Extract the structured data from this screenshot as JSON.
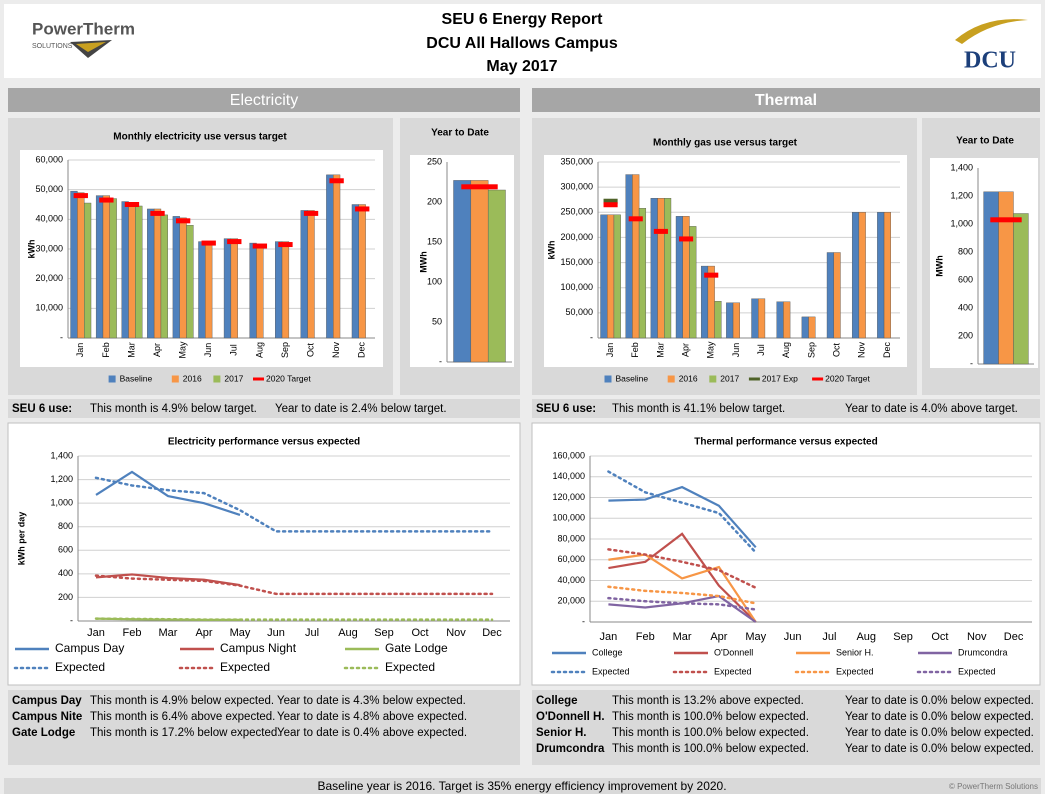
{
  "header": {
    "title": "SEU 6 Energy Report",
    "subtitle": "DCU All Hallows Campus",
    "period": "May 2017",
    "logo_left": "PowerTherm",
    "logo_left_sub": "SOLUTIONS",
    "logo_right": "DCU"
  },
  "sections": [
    "Electricity",
    "Thermal"
  ],
  "chart_data": [
    {
      "type": "bar",
      "title": "Monthly electricity use versus target",
      "y_label": "kWh",
      "categories": [
        "Jan",
        "Feb",
        "Mar",
        "Apr",
        "May",
        "Jun",
        "Jul",
        "Aug",
        "Sep",
        "Oct",
        "Nov",
        "Dec"
      ],
      "series": [
        {
          "name": "Baseline",
          "color": "#4f81bd",
          "kind": "bar",
          "values": [
            49500,
            48000,
            46000,
            43500,
            41000,
            32500,
            33500,
            32000,
            32500,
            43000,
            55000,
            45000
          ]
        },
        {
          "name": "2016",
          "color": "#f79646",
          "kind": "bar",
          "values": [
            49000,
            48000,
            45500,
            43500,
            40500,
            32500,
            33500,
            31500,
            32500,
            43000,
            55000,
            45000
          ]
        },
        {
          "name": "2017",
          "color": "#9bbb59",
          "kind": "bar",
          "values": [
            45500,
            47000,
            44500,
            41500,
            38000,
            null,
            null,
            null,
            null,
            null,
            null,
            null
          ]
        },
        {
          "name": "2020 Target",
          "color": "#ff0000",
          "kind": "dash",
          "values": [
            48000,
            46500,
            45000,
            42000,
            39500,
            32000,
            32500,
            31000,
            31500,
            42000,
            53000,
            43500
          ]
        }
      ],
      "ylim": [
        0,
        60000
      ],
      "yticks": [
        {
          "value": 0,
          "label": "-"
        },
        {
          "value": 10000,
          "label": "10,000"
        },
        {
          "value": 20000,
          "label": "20,000"
        },
        {
          "value": 30000,
          "label": "30,000"
        },
        {
          "value": 40000,
          "label": "40,000"
        },
        {
          "value": 50000,
          "label": "50,000"
        },
        {
          "value": 60000,
          "label": "60,000"
        }
      ],
      "grid": true,
      "legend": "bottom"
    },
    {
      "type": "bar",
      "title": "Year to Date",
      "y_label": "MWh",
      "categories": [
        null
      ],
      "series": [
        {
          "name": "Baseline",
          "color": "#4f81bd",
          "kind": "bar",
          "values": [
            227
          ]
        },
        {
          "name": "2016",
          "color": "#f79646",
          "kind": "bar",
          "values": [
            227
          ]
        },
        {
          "name": "2017",
          "color": "#9bbb59",
          "kind": "bar",
          "values": [
            215
          ]
        },
        {
          "name": "2020 Target",
          "color": "#ff0000",
          "kind": "dash",
          "values": [
            219
          ]
        }
      ],
      "ylim": [
        0,
        250
      ],
      "yticks": [
        {
          "value": 0,
          "label": "-"
        },
        50,
        100,
        150,
        200,
        250
      ],
      "grid": false
    },
    {
      "type": "bar",
      "title": "Monthly gas use versus target",
      "y_label": "kWh",
      "categories": [
        "Jan",
        "Feb",
        "Mar",
        "Apr",
        "May",
        "Jun",
        "Jul",
        "Aug",
        "Sep",
        "Oct",
        "Nov",
        "Dec"
      ],
      "series": [
        {
          "name": "Baseline",
          "color": "#4f81bd",
          "kind": "bar",
          "values": [
            245000,
            325000,
            278000,
            242000,
            143000,
            70000,
            78000,
            72000,
            42000,
            170000,
            250000,
            250000
          ]
        },
        {
          "name": "2016",
          "color": "#f79646",
          "kind": "bar",
          "values": [
            245000,
            325000,
            278000,
            242000,
            143000,
            70000,
            78000,
            72000,
            42000,
            170000,
            250000,
            250000
          ]
        },
        {
          "name": "2017",
          "color": "#9bbb59",
          "kind": "bar",
          "values": [
            245000,
            258000,
            278000,
            222000,
            73000,
            null,
            null,
            null,
            null,
            null,
            null,
            null
          ]
        },
        {
          "name": "2017 Exp",
          "color": "#4f6228",
          "kind": "dash",
          "values": [
            272000,
            null,
            null,
            null,
            null,
            null,
            null,
            null,
            null,
            null,
            null,
            null
          ]
        },
        {
          "name": "2020 Target",
          "color": "#ff0000",
          "kind": "dash",
          "values": [
            265000,
            237000,
            212000,
            197000,
            125000,
            null,
            null,
            null,
            null,
            null,
            null,
            null
          ]
        }
      ],
      "ylim": [
        0,
        350000
      ],
      "yticks": [
        {
          "value": 0,
          "label": "-"
        },
        {
          "value": 50000,
          "label": "50,000"
        },
        {
          "value": 100000,
          "label": "100,000"
        },
        {
          "value": 150000,
          "label": "150,000"
        },
        {
          "value": 200000,
          "label": "200,000"
        },
        {
          "value": 250000,
          "label": "250,000"
        },
        {
          "value": 300000,
          "label": "300,000"
        },
        {
          "value": 350000,
          "label": "350,000"
        }
      ],
      "grid": true,
      "legend": "bottom"
    },
    {
      "type": "bar",
      "title": "Year to Date",
      "y_label": "MWh",
      "categories": [
        null
      ],
      "series": [
        {
          "name": "Baseline",
          "color": "#4f81bd",
          "kind": "bar",
          "values": [
            1230
          ]
        },
        {
          "name": "2016",
          "color": "#f79646",
          "kind": "bar",
          "values": [
            1230
          ]
        },
        {
          "name": "2017",
          "color": "#9bbb59",
          "kind": "bar",
          "values": [
            1075
          ]
        },
        {
          "name": "2020 Target",
          "color": "#ff0000",
          "kind": "dash",
          "values": [
            1030
          ]
        }
      ],
      "ylim": [
        0,
        1400
      ],
      "yticks": [
        {
          "value": 0,
          "label": "-"
        },
        200,
        400,
        600,
        800,
        {
          "value": 1000,
          "label": "1,000"
        },
        {
          "value": 1200,
          "label": "1,200"
        },
        {
          "value": 1400,
          "label": "1,400"
        }
      ],
      "grid": false
    },
    {
      "type": "line",
      "title": "Electricity performance versus expected",
      "y_label": "kWh per day",
      "categories": [
        "Jan",
        "Feb",
        "Mar",
        "Apr",
        "May",
        "Jun",
        "Jul",
        "Aug",
        "Sep",
        "Oct",
        "Nov",
        "Dec"
      ],
      "series": [
        {
          "name": "Campus Day",
          "color": "#4f81bd",
          "dashed": false,
          "values": [
            1070,
            1265,
            1060,
            1000,
            900,
            null,
            null,
            null,
            null,
            null,
            null,
            null
          ]
        },
        {
          "name": "Campus Night",
          "color": "#c0504d",
          "dashed": false,
          "values": [
            370,
            395,
            365,
            350,
            305,
            null,
            null,
            null,
            null,
            null,
            null,
            null
          ]
        },
        {
          "name": "Gate Lodge",
          "color": "#9bbb59",
          "dashed": false,
          "values": [
            20,
            15,
            12,
            10,
            10,
            null,
            null,
            null,
            null,
            null,
            null,
            null
          ]
        },
        {
          "name": "Expected",
          "color": "#4f81bd",
          "dashed": true,
          "values": [
            1215,
            1150,
            1110,
            1085,
            940,
            760,
            760,
            760,
            760,
            760,
            760,
            760
          ]
        },
        {
          "name": "Expected",
          "color": "#c0504d",
          "dashed": true,
          "values": [
            385,
            360,
            350,
            340,
            300,
            230,
            230,
            230,
            230,
            230,
            230,
            230
          ]
        },
        {
          "name": "Expected",
          "color": "#9bbb59",
          "dashed": true,
          "values": [
            20,
            18,
            15,
            12,
            12,
            12,
            12,
            12,
            12,
            12,
            12,
            12
          ]
        }
      ],
      "ylim": [
        0,
        1400
      ],
      "yticks": [
        {
          "value": 0,
          "label": "-"
        },
        200,
        400,
        600,
        800,
        {
          "value": 1000,
          "label": "1,000"
        },
        {
          "value": 1200,
          "label": "1,200"
        },
        {
          "value": 1400,
          "label": "1,400"
        }
      ],
      "grid": true,
      "legend": "bottom"
    },
    {
      "type": "line",
      "title": "Thermal performance versus expected",
      "categories": [
        "Jan",
        "Feb",
        "Mar",
        "Apr",
        "May",
        "Jun",
        "Jul",
        "Aug",
        "Sep",
        "Oct",
        "Nov",
        "Dec"
      ],
      "series": [
        {
          "name": "College",
          "color": "#4f81bd",
          "dashed": false,
          "values": [
            117000,
            118000,
            130000,
            112000,
            72000,
            null,
            null,
            null,
            null,
            null,
            null,
            null
          ]
        },
        {
          "name": "O'Donnell",
          "color": "#c0504d",
          "dashed": false,
          "values": [
            52000,
            58000,
            85000,
            35000,
            0,
            null,
            null,
            null,
            null,
            null,
            null,
            null
          ]
        },
        {
          "name": "Senior H.",
          "color": "#f79646",
          "dashed": false,
          "values": [
            60000,
            65000,
            42000,
            53000,
            0,
            null,
            null,
            null,
            null,
            null,
            null,
            null
          ]
        },
        {
          "name": "Drumcondra",
          "color": "#8064a2",
          "dashed": false,
          "values": [
            17000,
            14000,
            18000,
            25000,
            0,
            null,
            null,
            null,
            null,
            null,
            null,
            null
          ]
        },
        {
          "name": "Expected",
          "color": "#4f81bd",
          "dashed": true,
          "values": [
            145000,
            125000,
            115000,
            105000,
            67000,
            null,
            null,
            null,
            null,
            null,
            null,
            null
          ]
        },
        {
          "name": "Expected",
          "color": "#c0504d",
          "dashed": true,
          "values": [
            70000,
            65000,
            58000,
            50000,
            33000,
            null,
            null,
            null,
            null,
            null,
            null,
            null
          ]
        },
        {
          "name": "Expected",
          "color": "#f79646",
          "dashed": true,
          "values": [
            34000,
            30000,
            28000,
            25000,
            18000,
            null,
            null,
            null,
            null,
            null,
            null,
            null
          ]
        },
        {
          "name": "Expected",
          "color": "#8064a2",
          "dashed": true,
          "values": [
            23000,
            20000,
            18000,
            17000,
            12000,
            null,
            null,
            null,
            null,
            null,
            null,
            null
          ]
        }
      ],
      "ylim": [
        0,
        160000
      ],
      "yticks": [
        {
          "value": 0,
          "label": "-"
        },
        {
          "value": 20000,
          "label": "20,000"
        },
        {
          "value": 40000,
          "label": "40,000"
        },
        {
          "value": 60000,
          "label": "60,000"
        },
        {
          "value": 80000,
          "label": "80,000"
        },
        {
          "value": 100000,
          "label": "100,000"
        },
        {
          "value": 120000,
          "label": "120,000"
        },
        {
          "value": 140000,
          "label": "140,000"
        },
        {
          "value": 160000,
          "label": "160,000"
        }
      ],
      "grid": true,
      "legend": "bottom"
    }
  ],
  "summaries": [
    {
      "label": "SEU 6 use:",
      "month": "This month is 4.9% below target.",
      "ytd": "Year to date is 2.4% below target."
    },
    {
      "label": "SEU 6 use:",
      "month": "This month is 41.1% below target.",
      "ytd": "Year to date is 4.0% above target."
    }
  ],
  "tables": [
    {
      "rows": [
        [
          "Campus Day",
          "This month is 4.9% below expected.",
          "Year to date is 4.3% below expected."
        ],
        [
          "Campus Nite",
          "This month is 6.4% above expected.",
          "Year to date is 4.8% above expected."
        ],
        [
          "Gate Lodge",
          "This month is 17.2% below expected.",
          "Year to date is 0.4% above expected."
        ]
      ]
    },
    {
      "rows": [
        [
          "College",
          "This month is 13.2% above expected.",
          "Year to date is 0.0% below expected."
        ],
        [
          "O'Donnell H.",
          "This month is 100.0% below expected.",
          "Year to date is 0.0% below expected."
        ],
        [
          "Senior H.",
          "This month is 100.0% below expected.",
          "Year to date is 0.0% below expected."
        ],
        [
          "Drumcondra",
          "This month is 100.0% below expected.",
          "Year to date is 0.0% below expected."
        ]
      ]
    }
  ],
  "footer": {
    "note": "Baseline year is 2016. Target is 35% energy efficiency improvement by 2020.",
    "credit": "© PowerTherm Solutions"
  }
}
